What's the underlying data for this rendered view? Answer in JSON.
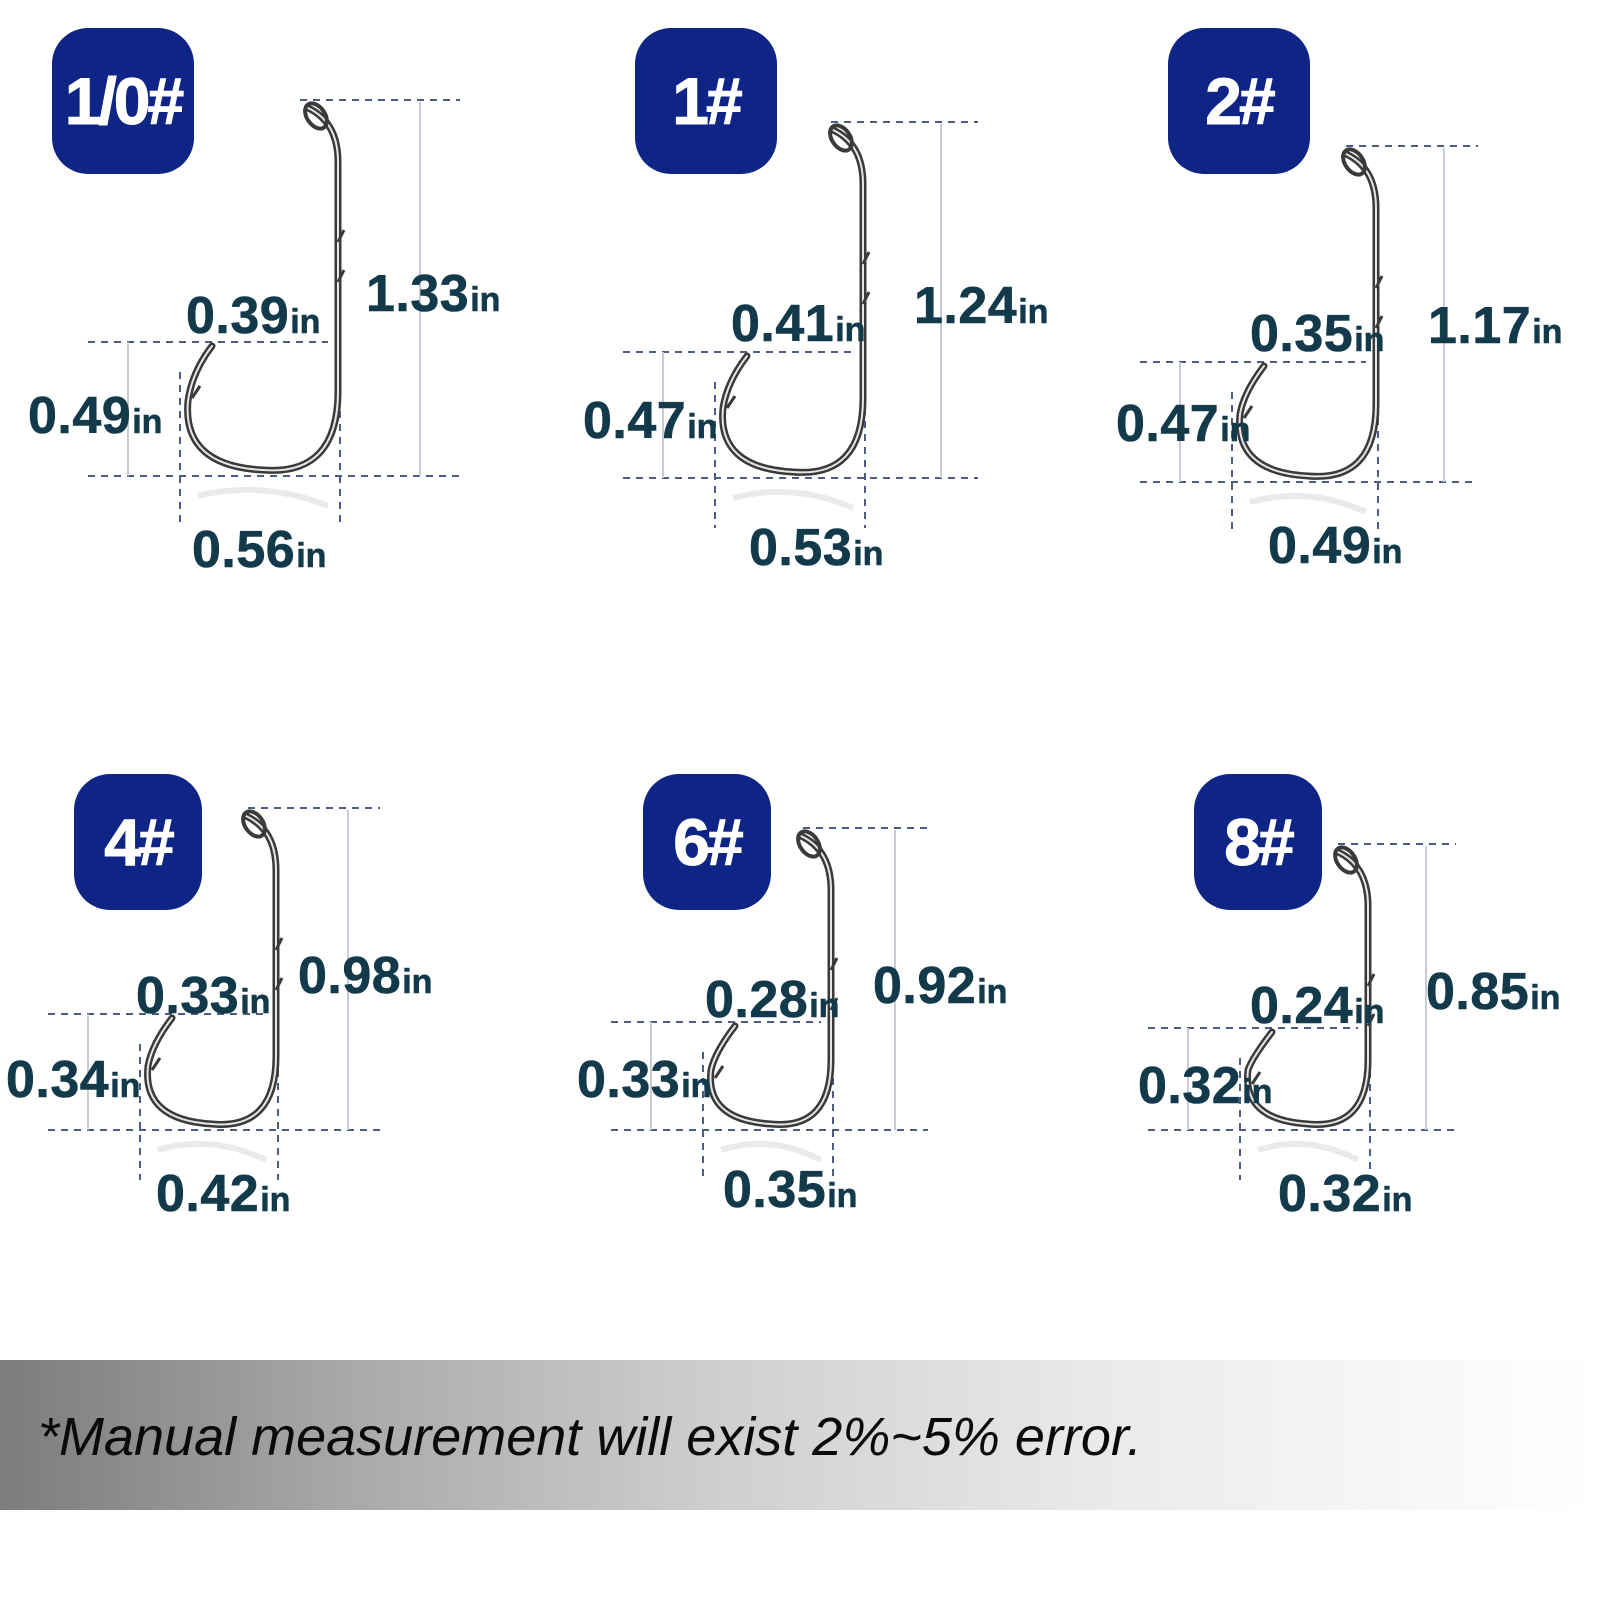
{
  "hooks": [
    {
      "size": "1/0#",
      "width_in": "0.39",
      "height_in": "0.49",
      "gap_in": "0.56",
      "length_in": "1.33",
      "unit": "in"
    },
    {
      "size": "1#",
      "width_in": "0.41",
      "height_in": "0.47",
      "gap_in": "0.53",
      "length_in": "1.24",
      "unit": "in"
    },
    {
      "size": "2#",
      "width_in": "0.35",
      "height_in": "0.47",
      "gap_in": "0.49",
      "length_in": "1.17",
      "unit": "in"
    },
    {
      "size": "4#",
      "width_in": "0.33",
      "height_in": "0.34",
      "gap_in": "0.42",
      "length_in": "0.98",
      "unit": "in"
    },
    {
      "size": "6#",
      "width_in": "0.28",
      "height_in": "0.33",
      "gap_in": "0.35",
      "length_in": "0.92",
      "unit": "in"
    },
    {
      "size": "8#",
      "width_in": "0.24",
      "height_in": "0.32",
      "gap_in": "0.32",
      "length_in": "0.85",
      "unit": "in"
    }
  ],
  "footer": {
    "note": "*Manual measurement will exist 2%~5% error."
  },
  "colors": {
    "badge": "#0e2586",
    "dimension_text": "#123a4b",
    "guide_lines": "#4b5d86",
    "hook_metal": "#3a3a3a"
  }
}
